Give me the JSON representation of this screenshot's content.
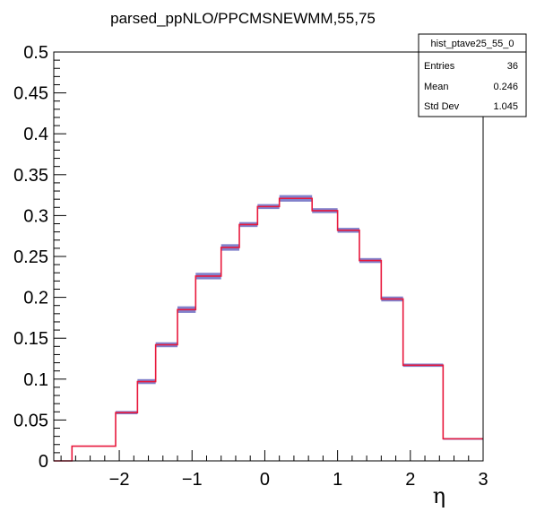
{
  "chart_data": {
    "type": "histogram",
    "title": "parsed_ppNLO/PPCMSNEWMM,55,75",
    "xlabel": "η",
    "ylabel": "",
    "xlim": [
      -2.9,
      3.0
    ],
    "ylim": [
      0,
      0.5
    ],
    "x_ticks": [
      -2,
      -1,
      0,
      1,
      2,
      3
    ],
    "x_tick_labels": [
      "−2",
      "−1",
      "0",
      "1",
      "2",
      "3"
    ],
    "y_ticks": [
      0,
      0.05,
      0.1,
      0.15,
      0.2,
      0.25,
      0.3,
      0.35,
      0.4,
      0.45,
      0.5
    ],
    "y_tick_labels": [
      "0",
      "0.05",
      "0.1",
      "0.15",
      "0.2",
      "0.25",
      "0.3",
      "0.35",
      "0.4",
      "0.45",
      "0.5"
    ],
    "bin_edges": [
      -2.9,
      -2.65,
      -2.05,
      -1.75,
      -1.5,
      -1.2,
      -0.95,
      -0.6,
      -0.35,
      -0.1,
      0.2,
      0.65,
      1.0,
      1.3,
      1.6,
      1.9,
      2.45,
      3.0
    ],
    "series": [
      {
        "name": "hist_ptave25_55_0",
        "values": [
          0.0,
          0.018,
          0.059,
          0.097,
          0.142,
          0.185,
          0.226,
          0.261,
          0.289,
          0.311,
          0.321,
          0.306,
          0.282,
          0.245,
          0.198,
          0.117,
          0.027
        ],
        "errors": [
          0.0,
          0.0,
          0.002,
          0.003,
          0.003,
          0.004,
          0.004,
          0.004,
          0.003,
          0.003,
          0.004,
          0.003,
          0.003,
          0.003,
          0.003,
          0.002,
          0.001
        ],
        "color": "#e8183c",
        "error_color": "#1a1aa0"
      }
    ],
    "stats_box": {
      "name": "hist_ptave25_55_0",
      "rows": [
        {
          "label": "Entries",
          "value": "36"
        },
        {
          "label": "Mean",
          "value": "0.246"
        },
        {
          "label": "Std Dev",
          "value": "1.045"
        }
      ]
    },
    "grid": false,
    "legend": "top-right"
  }
}
